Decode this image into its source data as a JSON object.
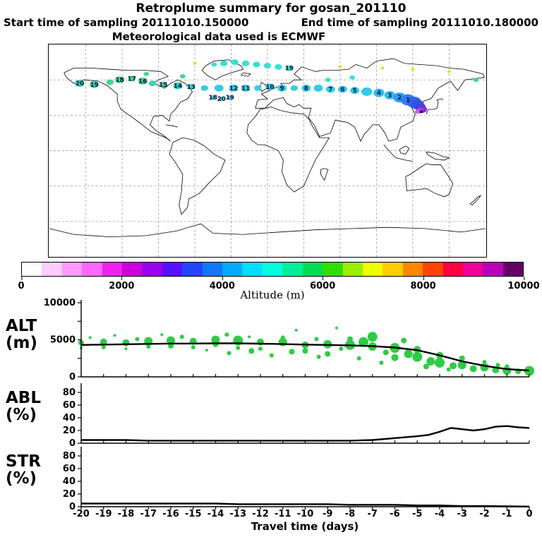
{
  "header": {
    "title": "Retroplume summary for gosan_201110",
    "start_line": "Start time of sampling 20111010.150000",
    "end_line": "End time of sampling 20111010.180000",
    "met_line": "Meteorological data used is ECMWF"
  },
  "colorbar": {
    "title": "Altitude (m)",
    "min": 0,
    "max": 10000,
    "ticks": [
      0,
      2000,
      4000,
      6000,
      8000,
      10000
    ],
    "segment_colors": [
      "#ffffff",
      "#ffccff",
      "#ff99ff",
      "#ff66ff",
      "#ee22ee",
      "#cc00dd",
      "#9900ee",
      "#5511ff",
      "#2244ff",
      "#1177ff",
      "#00aaff",
      "#00ddff",
      "#00ffdd",
      "#00ee99",
      "#00dd55",
      "#33dd00",
      "#99ee00",
      "#eeff00",
      "#ffcc00",
      "#ff8800",
      "#ff4400",
      "#ff0044",
      "#ee0099",
      "#bb00bb",
      "#660066"
    ]
  },
  "xaxis": {
    "label": "Travel time (days)",
    "range": [
      -20,
      0
    ],
    "ticks": [
      -20,
      -19,
      -18,
      -17,
      -16,
      -15,
      -14,
      -13,
      -12,
      -11,
      -10,
      -9,
      -8,
      -7,
      -6,
      -5,
      -4,
      -3,
      -2,
      -1,
      0
    ]
  },
  "chart_data": [
    {
      "type": "scatter",
      "name": "trajectory-map",
      "title": "Retroplume particle positions colored by altitude",
      "lon_range": [
        -180,
        180
      ],
      "lat_range": [
        -90,
        90
      ],
      "grid": true,
      "points": [
        {
          "lon": -155,
          "lat": 57,
          "r": 5,
          "c": "#36d9ae",
          "label": "20"
        },
        {
          "lon": -143,
          "lat": 56,
          "r": 5,
          "c": "#36d9ae",
          "label": "19"
        },
        {
          "lon": -130,
          "lat": 58,
          "r": 4,
          "c": "#3fd98e"
        },
        {
          "lon": -122,
          "lat": 60,
          "r": 5,
          "c": "#3fd98e",
          "label": "18"
        },
        {
          "lon": -112,
          "lat": 61,
          "r": 4,
          "c": "#3fd98e",
          "label": "17"
        },
        {
          "lon": -103,
          "lat": 59,
          "r": 5,
          "c": "#3fd98e",
          "label": "16"
        },
        {
          "lon": -95,
          "lat": 57,
          "r": 4,
          "c": "#38d8a4"
        },
        {
          "lon": -86,
          "lat": 56,
          "r": 4,
          "c": "#38d8a4",
          "label": "15"
        },
        {
          "lon": -74,
          "lat": 55,
          "r": 5,
          "c": "#34d2c6",
          "label": "14"
        },
        {
          "lon": -63,
          "lat": 54,
          "r": 4,
          "c": "#34d2c6",
          "label": "13"
        },
        {
          "lon": -52,
          "lat": 53,
          "r": 4,
          "c": "#35cde2"
        },
        {
          "lon": -40,
          "lat": 53,
          "r": 5,
          "c": "#35cde2"
        },
        {
          "lon": -28,
          "lat": 53,
          "r": 5,
          "c": "#35cde2",
          "label": "12"
        },
        {
          "lon": -18,
          "lat": 53,
          "r": 5,
          "c": "#35cde2",
          "label": "11"
        },
        {
          "lon": -8,
          "lat": 53,
          "r": 4,
          "c": "#35cde2"
        },
        {
          "lon": 2,
          "lat": 54,
          "r": 5,
          "c": "#35cde2",
          "label": "10"
        },
        {
          "lon": 12,
          "lat": 53,
          "r": 5,
          "c": "#35cde2",
          "label": "9"
        },
        {
          "lon": 22,
          "lat": 53,
          "r": 4,
          "c": "#35cde2"
        },
        {
          "lon": 32,
          "lat": 53,
          "r": 5,
          "c": "#35cde2",
          "label": "8"
        },
        {
          "lon": 42,
          "lat": 53,
          "r": 5,
          "c": "#32c9ea"
        },
        {
          "lon": 52,
          "lat": 52,
          "r": 5,
          "c": "#32c9ea",
          "label": "7"
        },
        {
          "lon": 62,
          "lat": 52,
          "r": 5,
          "c": "#32c9ea",
          "label": "6"
        },
        {
          "lon": 72,
          "lat": 51,
          "r": 5,
          "c": "#32c9ea",
          "label": "5"
        },
        {
          "lon": 82,
          "lat": 50,
          "r": 6,
          "c": "#32c9ea"
        },
        {
          "lon": 92,
          "lat": 49,
          "r": 6,
          "c": "#31bcf2",
          "label": "4"
        },
        {
          "lon": 101,
          "lat": 47,
          "r": 6,
          "c": "#31bcf2",
          "label": "3"
        },
        {
          "lon": 109,
          "lat": 45,
          "r": 7,
          "c": "#2f9ef6",
          "label": "2"
        },
        {
          "lon": 116,
          "lat": 43,
          "r": 8,
          "c": "#2f7ef8",
          "label": "1"
        },
        {
          "lon": 121,
          "lat": 41,
          "r": 8,
          "c": "#2f62f0"
        },
        {
          "lon": 124,
          "lat": 39,
          "r": 7,
          "c": "#3052e6"
        },
        {
          "lon": 126,
          "lat": 37,
          "r": 6,
          "c": "#4244d8"
        },
        {
          "lon": 128,
          "lat": 35,
          "r": 5,
          "c": "#7a30e0"
        },
        {
          "lon": 126,
          "lat": 34,
          "r": 4,
          "c": "#b13cee"
        },
        {
          "lon": 124,
          "lat": 33,
          "r": 3,
          "c": "#d65af5"
        },
        {
          "lon": 127,
          "lat": 33,
          "r": 2,
          "c": "#222222"
        },
        {
          "lon": -44,
          "lat": 73,
          "r": 3,
          "c": "#35e0d6"
        },
        {
          "lon": -36,
          "lat": 74,
          "r": 4,
          "c": "#35e0d6"
        },
        {
          "lon": -27,
          "lat": 75,
          "r": 4,
          "c": "#35e0d6"
        },
        {
          "lon": -18,
          "lat": 74,
          "r": 4,
          "c": "#35e0d6"
        },
        {
          "lon": -9,
          "lat": 73,
          "r": 4,
          "c": "#35e0d6"
        },
        {
          "lon": 0,
          "lat": 72,
          "r": 4,
          "c": "#35e0d6"
        },
        {
          "lon": 9,
          "lat": 71,
          "r": 4,
          "c": "#35e0d6"
        },
        {
          "lon": 18,
          "lat": 70,
          "r": 4,
          "c": "#35e0d6",
          "label": "19"
        },
        {
          "lon": -45,
          "lat": 45,
          "r": 3,
          "c": "#35cde2",
          "label": "18"
        },
        {
          "lon": -38,
          "lat": 44,
          "r": 3,
          "c": "#35cde2",
          "label": "20"
        },
        {
          "lon": -31,
          "lat": 45,
          "r": 3,
          "c": "#35cde2",
          "label": "19"
        },
        {
          "lon": 60,
          "lat": 71,
          "r": 2,
          "c": "#e3e312"
        },
        {
          "lon": 95,
          "lat": 70,
          "r": 2,
          "c": "#e3e312"
        },
        {
          "lon": 120,
          "lat": 69,
          "r": 2,
          "c": "#e3e312"
        },
        {
          "lon": 150,
          "lat": 67,
          "r": 2,
          "c": "#e3e312"
        },
        {
          "lon": -60,
          "lat": 74,
          "r": 2,
          "c": "#e3e312"
        },
        {
          "lon": 172,
          "lat": 60,
          "r": 3,
          "c": "#3fd98e"
        },
        {
          "lon": 50,
          "lat": 60,
          "r": 3,
          "c": "#35e0d6"
        },
        {
          "lon": 70,
          "lat": 62,
          "r": 3,
          "c": "#35e0d6"
        },
        {
          "lon": -100,
          "lat": 65,
          "r": 3,
          "c": "#3fd98e"
        },
        {
          "lon": -70,
          "lat": 63,
          "r": 3,
          "c": "#3fd98e"
        }
      ]
    },
    {
      "type": "line",
      "name": "ALT",
      "ylabel_main": "ALT",
      "ylabel_sub": "(m)",
      "ylim": [
        0,
        10000
      ],
      "yticks": [
        0,
        2500,
        5000,
        7500,
        10000
      ],
      "ytick_labels": [
        "0",
        "",
        "5000",
        "",
        "10000"
      ],
      "bubble_color": "#2ecc44",
      "line": {
        "x": [
          -20,
          -19,
          -18,
          -17,
          -16,
          -15,
          -14,
          -13,
          -12,
          -11,
          -10,
          -9,
          -8,
          -7,
          -6,
          -5,
          -4,
          -3,
          -2,
          -1,
          0
        ],
        "y": [
          4300,
          4350,
          4400,
          4450,
          4500,
          4500,
          4520,
          4520,
          4480,
          4420,
          4350,
          4300,
          4250,
          4150,
          3950,
          3600,
          2900,
          2100,
          1500,
          1050,
          850
        ]
      },
      "bubbles": [
        [
          -20,
          4600,
          4
        ],
        [
          -20,
          3900,
          2
        ],
        [
          -19.6,
          5300,
          2
        ],
        [
          -19,
          4700,
          5
        ],
        [
          -19,
          4000,
          3
        ],
        [
          -18.5,
          5600,
          2
        ],
        [
          -18,
          4600,
          5
        ],
        [
          -18,
          3800,
          2
        ],
        [
          -17.5,
          5100,
          3
        ],
        [
          -17,
          4800,
          6
        ],
        [
          -17,
          4100,
          3
        ],
        [
          -16.4,
          5700,
          2
        ],
        [
          -16,
          4900,
          6
        ],
        [
          -16,
          4200,
          4
        ],
        [
          -15.5,
          5400,
          3
        ],
        [
          -15,
          4800,
          5
        ],
        [
          -15,
          4000,
          3
        ],
        [
          -14.4,
          3600,
          2
        ],
        [
          -14,
          5000,
          6
        ],
        [
          -14,
          4400,
          4
        ],
        [
          -13.5,
          5700,
          3
        ],
        [
          -13.4,
          3200,
          3
        ],
        [
          -13,
          4900,
          7
        ],
        [
          -13,
          3900,
          3
        ],
        [
          -12.5,
          5400,
          2
        ],
        [
          -12.4,
          3500,
          4
        ],
        [
          -12,
          4700,
          5
        ],
        [
          -12,
          3800,
          3
        ],
        [
          -11.5,
          2900,
          3
        ],
        [
          -11,
          4700,
          6
        ],
        [
          -11,
          5300,
          3
        ],
        [
          -10.6,
          3400,
          4
        ],
        [
          -10.4,
          6300,
          2
        ],
        [
          -10,
          4300,
          5
        ],
        [
          -10,
          3500,
          4
        ],
        [
          -9.5,
          5100,
          3
        ],
        [
          -9.4,
          2700,
          3
        ],
        [
          -9,
          4400,
          6
        ],
        [
          -9,
          3100,
          4
        ],
        [
          -8.6,
          6600,
          2
        ],
        [
          -8.4,
          3800,
          3
        ],
        [
          -8,
          4300,
          7
        ],
        [
          -8,
          5100,
          4
        ],
        [
          -7.6,
          2500,
          3
        ],
        [
          -7.4,
          4700,
          7
        ],
        [
          -7,
          4100,
          6
        ],
        [
          -7,
          5400,
          7
        ],
        [
          -6.6,
          1900,
          3
        ],
        [
          -6.4,
          3300,
          4
        ],
        [
          -6,
          3900,
          7
        ],
        [
          -6,
          2600,
          5
        ],
        [
          -5.6,
          4900,
          4
        ],
        [
          -5.4,
          3100,
          6
        ],
        [
          -5,
          2700,
          7
        ],
        [
          -5,
          3700,
          5
        ],
        [
          -4.6,
          1400,
          4
        ],
        [
          -4.4,
          2100,
          6
        ],
        [
          -4,
          1900,
          7
        ],
        [
          -4,
          2900,
          5
        ],
        [
          -3.6,
          1000,
          3
        ],
        [
          -3.4,
          1500,
          5
        ],
        [
          -3,
          1600,
          6
        ],
        [
          -3,
          2500,
          4
        ],
        [
          -2.5,
          1100,
          5
        ],
        [
          -2,
          1300,
          6
        ],
        [
          -2,
          2000,
          3
        ],
        [
          -1.5,
          950,
          5
        ],
        [
          -1.4,
          1600,
          3
        ],
        [
          -1,
          850,
          6
        ],
        [
          -1,
          1400,
          3
        ],
        [
          -0.5,
          750,
          4
        ],
        [
          0,
          800,
          7
        ]
      ]
    },
    {
      "type": "line",
      "name": "ABL",
      "ylabel_main": "ABL",
      "ylabel_sub": "(%)",
      "ylim": [
        0,
        90
      ],
      "yticks": [
        0,
        20,
        40,
        60,
        80
      ],
      "ytick_labels": [
        "0",
        "20",
        "40",
        "60",
        "80"
      ],
      "line": {
        "x": [
          -20,
          -19,
          -18,
          -17,
          -16,
          -15,
          -14,
          -13,
          -12,
          -11,
          -10,
          -9,
          -8,
          -7,
          -6,
          -5,
          -4.5,
          -4,
          -3.5,
          -3,
          -2.5,
          -2,
          -1.5,
          -1,
          -0.5,
          0
        ],
        "y": [
          5,
          5,
          5,
          4,
          4,
          4,
          4,
          4,
          4,
          4,
          4,
          4,
          4,
          5,
          8,
          11,
          13,
          18,
          24,
          22,
          20,
          22,
          26,
          27,
          25,
          24
        ]
      }
    },
    {
      "type": "line",
      "name": "STR",
      "ylabel_main": "STR",
      "ylabel_sub": "(%)",
      "ylim": [
        0,
        90
      ],
      "yticks": [
        0,
        20,
        40,
        60,
        80
      ],
      "ytick_labels": [
        "0",
        "20",
        "40",
        "60",
        "80"
      ],
      "line": {
        "x": [
          -20,
          -19,
          -18,
          -17,
          -16,
          -15,
          -14,
          -13,
          -12,
          -11,
          -10,
          -9,
          -8,
          -7,
          -6,
          -5,
          -4,
          -3,
          -2,
          -1,
          0
        ],
        "y": [
          5,
          5,
          5,
          5,
          5,
          5,
          5,
          4,
          4,
          4,
          4,
          4,
          3,
          3,
          3,
          2,
          2,
          1,
          1,
          0.5,
          0.2
        ]
      }
    }
  ]
}
